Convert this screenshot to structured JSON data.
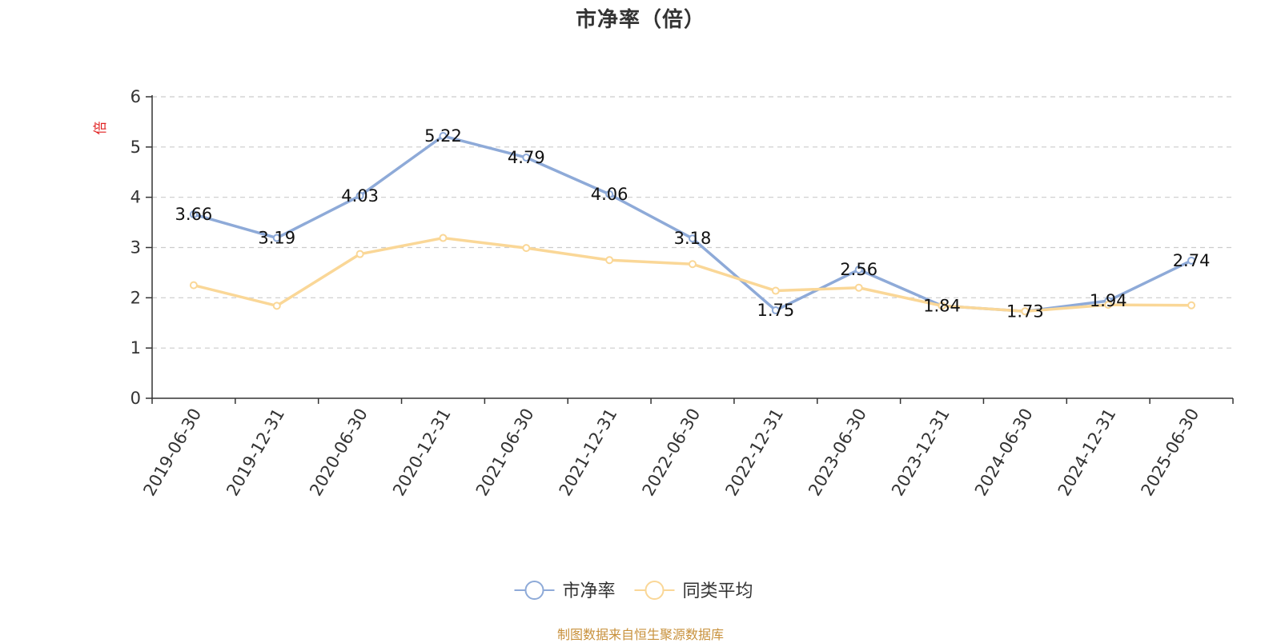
{
  "chart_data": {
    "type": "line",
    "title": "市净率（倍）",
    "ylabel": "倍",
    "xlabel": "",
    "ylim": [
      0,
      6
    ],
    "yticks": [
      0,
      1,
      2,
      3,
      4,
      5,
      6
    ],
    "grid": "horizontal dashed",
    "legend_position": "bottom-center",
    "categories": [
      "2019-06-30",
      "2019-12-31",
      "2020-06-30",
      "2020-12-31",
      "2021-06-30",
      "2021-12-31",
      "2022-06-30",
      "2022-12-31",
      "2023-06-30",
      "2023-12-31",
      "2024-06-30",
      "2024-12-31",
      "2025-06-30"
    ],
    "series": [
      {
        "name": "市净率",
        "color": "#8eaad8",
        "show_labels": true,
        "values": [
          3.66,
          3.19,
          4.03,
          5.22,
          4.79,
          4.06,
          3.18,
          1.75,
          2.56,
          1.84,
          1.73,
          1.94,
          2.74
        ]
      },
      {
        "name": "同类平均",
        "color": "#fad797",
        "show_labels": false,
        "values": [
          2.25,
          1.84,
          2.87,
          3.19,
          2.99,
          2.75,
          2.67,
          2.14,
          2.2,
          1.84,
          1.73,
          1.86,
          1.85
        ]
      }
    ]
  },
  "source_note": "制图数据来自恒生聚源数据库",
  "colors": {
    "axis": "#333333",
    "grid": "#cccccc",
    "ylabel": "#e02020",
    "source": "#c8913c"
  }
}
